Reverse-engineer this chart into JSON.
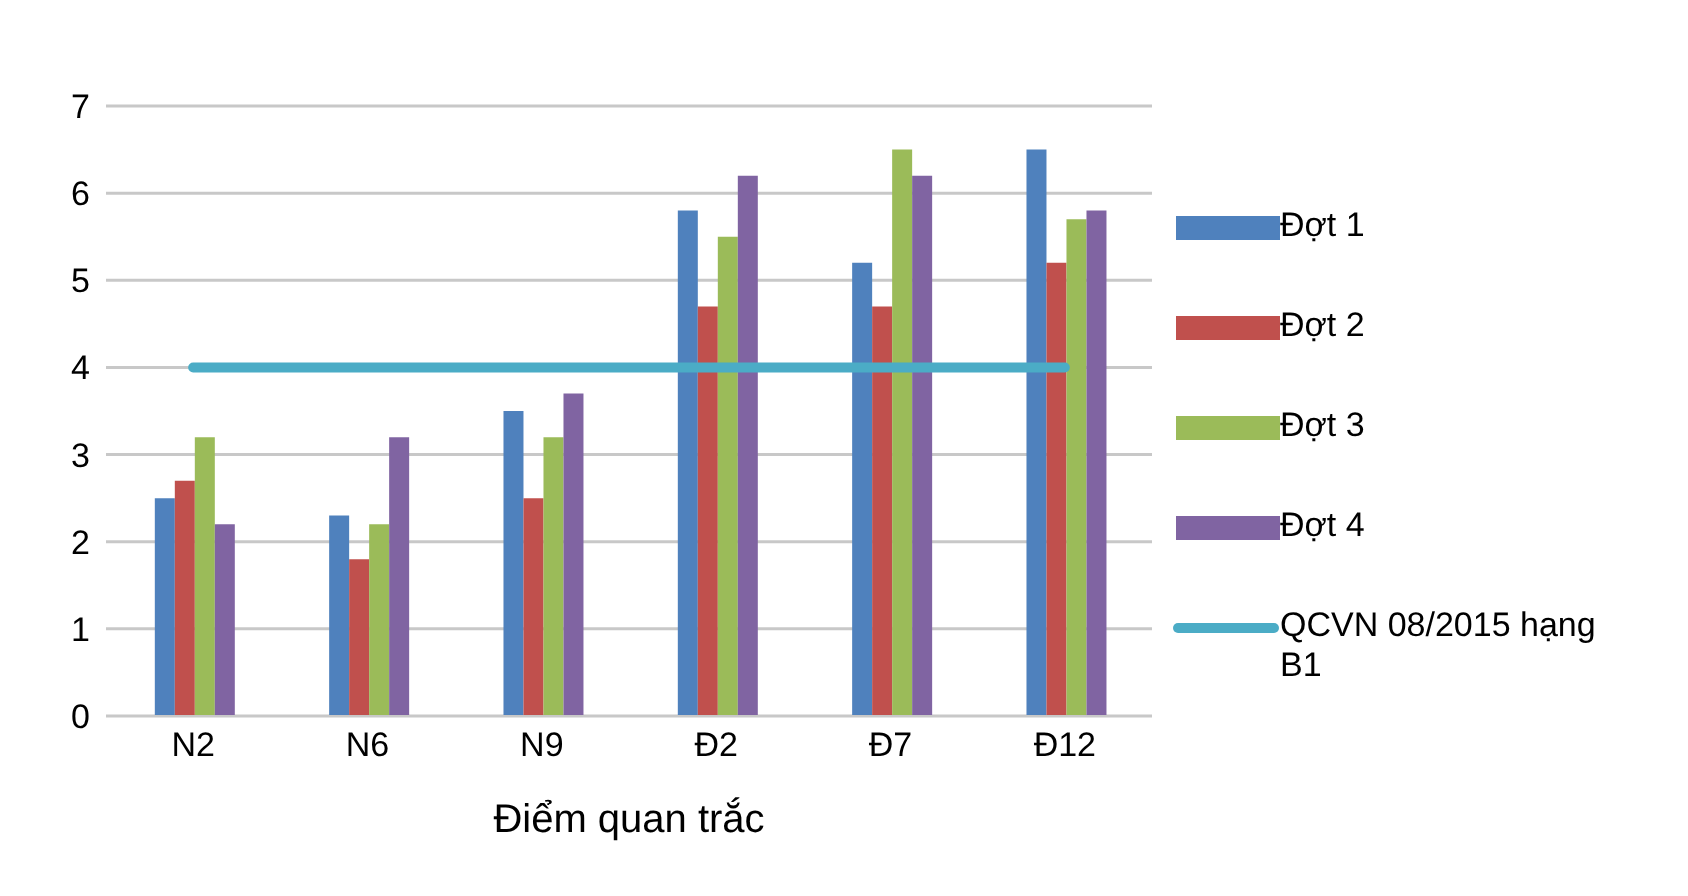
{
  "chart_data": {
    "type": "bar",
    "xlabel": "Điểm quan trắc",
    "categories": [
      "N2",
      "N6",
      "N9",
      "Đ2",
      "Đ7",
      "Đ12"
    ],
    "series": [
      {
        "name": "Đợt 1",
        "color": "#4f81bd",
        "values": [
          2.5,
          2.3,
          3.5,
          5.8,
          5.2,
          6.5
        ]
      },
      {
        "name": "Đợt 2",
        "color": "#c0504d",
        "values": [
          2.7,
          1.8,
          2.5,
          4.7,
          4.7,
          5.2
        ]
      },
      {
        "name": "Đợt 3",
        "color": "#9bbb59",
        "values": [
          3.2,
          2.2,
          3.2,
          5.5,
          6.5,
          5.7
        ]
      },
      {
        "name": "Đợt 4",
        "color": "#8064a2",
        "values": [
          2.2,
          3.2,
          3.7,
          6.2,
          6.2,
          5.8
        ]
      },
      {
        "name": "QCVN 08/2015 hạng B1",
        "type": "line",
        "color": "#4bacc6",
        "values": [
          4,
          4,
          4,
          4,
          4,
          4
        ]
      }
    ],
    "ylim": [
      0,
      7
    ],
    "yticks": [
      0,
      1,
      2,
      3,
      4,
      5,
      6,
      7
    ],
    "grid": "y",
    "legend": "right"
  }
}
